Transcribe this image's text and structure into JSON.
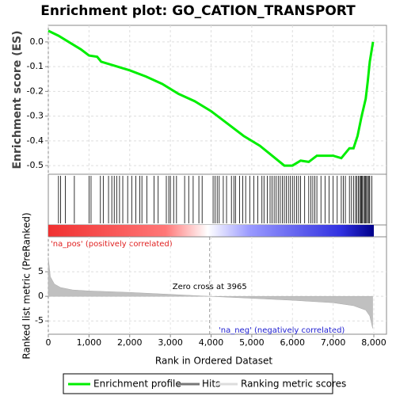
{
  "chart_data": [
    {
      "type": "line",
      "title": "Enrichment plot: GO_CATION_TRANSPORT",
      "ylabel": "Enrichment score (ES)",
      "x": [
        0,
        250,
        500,
        800,
        1000,
        1200,
        1300,
        1600,
        2000,
        2400,
        2800,
        3200,
        3600,
        4000,
        4400,
        4800,
        5200,
        5500,
        5800,
        6000,
        6200,
        6400,
        6600,
        7000,
        7200,
        7400,
        7500,
        7600,
        7700,
        7800,
        7850,
        7900,
        7950,
        7980
      ],
      "series": [
        {
          "name": "Enrichment profile",
          "color": "#00ee00",
          "values": [
            0.045,
            0.025,
            0.0,
            -0.03,
            -0.055,
            -0.06,
            -0.08,
            -0.095,
            -0.115,
            -0.14,
            -0.17,
            -0.21,
            -0.24,
            -0.28,
            -0.33,
            -0.38,
            -0.42,
            -0.46,
            -0.5,
            -0.5,
            -0.48,
            -0.485,
            -0.46,
            -0.46,
            -0.47,
            -0.43,
            -0.43,
            -0.38,
            -0.3,
            -0.23,
            -0.16,
            -0.08,
            -0.03,
            0.0
          ]
        }
      ],
      "xlim": [
        0,
        8311
      ],
      "ylim": [
        -0.535,
        0.067
      ],
      "yticks": [
        {
          "value": -0.5,
          "label": "-0.5"
        },
        {
          "value": -0.4,
          "label": "-0.4"
        },
        {
          "value": -0.3,
          "label": "-0.3"
        },
        {
          "value": -0.2,
          "label": "-0.2"
        },
        {
          "value": -0.1,
          "label": "-0.1"
        },
        {
          "value": 0,
          "label": "0.0"
        }
      ],
      "grid": true
    },
    {
      "type": "hits",
      "series": [
        {
          "name": "Hits",
          "color": "#000000",
          "x": [
            250,
            300,
            420,
            640,
            1000,
            1050,
            1280,
            1350,
            1480,
            1560,
            1620,
            1680,
            1750,
            1830,
            1950,
            2050,
            2150,
            2250,
            2300,
            2420,
            2600,
            2700,
            2900,
            2960,
            3000,
            3080,
            3150,
            3350,
            3450,
            3560,
            3700,
            3780,
            4050,
            4100,
            4150,
            4200,
            4300,
            4380,
            4500,
            4560,
            4600,
            4700,
            4780,
            4850,
            4950,
            5050,
            5150,
            5250,
            5300,
            5380,
            5450,
            5500,
            5550,
            5600,
            5650,
            5700,
            5750,
            5800,
            5850,
            5900,
            5950,
            6000,
            6050,
            6100,
            6150,
            6200,
            6300,
            6400,
            6450,
            6500,
            6550,
            6600,
            6700,
            6800,
            6900,
            7000,
            7100,
            7200,
            7250,
            7300,
            7400,
            7450,
            7500,
            7550,
            7580,
            7620,
            7650,
            7680,
            7700,
            7720,
            7750,
            7780,
            7800,
            7820,
            7850,
            7880,
            7900,
            7950
          ]
        }
      ]
    },
    {
      "type": "area",
      "ylabel": "Ranked list metric (PreRanked)",
      "xlabel": "Rank in Ordered Dataset",
      "x": [
        0,
        50,
        150,
        300,
        600,
        1000,
        2000,
        3000,
        3965,
        5000,
        6000,
        7000,
        7500,
        7800,
        7900,
        7970
      ],
      "series": [
        {
          "name": "Ranking metric scores",
          "color": "#c0c0c0",
          "values": [
            7.9,
            4,
            2.5,
            1.8,
            1.3,
            1.1,
            0.8,
            0.4,
            0,
            -0.4,
            -0.8,
            -1.3,
            -1.9,
            -2.8,
            -4,
            -6.5
          ]
        }
      ],
      "xlim": [
        0,
        8311
      ],
      "ylim": [
        -7.7,
        12.1
      ],
      "yticks": [
        -5,
        0,
        5
      ],
      "xticks": [
        0,
        {
          "value": 1000,
          "label": "1,000"
        },
        {
          "value": 2000,
          "label": "2,000"
        },
        {
          "value": 3000,
          "label": "3,000"
        },
        {
          "value": 4000,
          "label": "4,000"
        },
        {
          "value": 5000,
          "label": "5,000"
        },
        {
          "value": 6000,
          "label": "6,000"
        },
        {
          "value": 7000,
          "label": "7,000"
        },
        {
          "value": 8000,
          "label": "8,000"
        }
      ],
      "pos_label": "'na_pos' (positively correlated)",
      "neg_label": "'na_neg' (negatively correlated)",
      "zero_cross": {
        "value": 3965,
        "label": "Zero cross at 3965"
      },
      "grid": true
    }
  ]
}
